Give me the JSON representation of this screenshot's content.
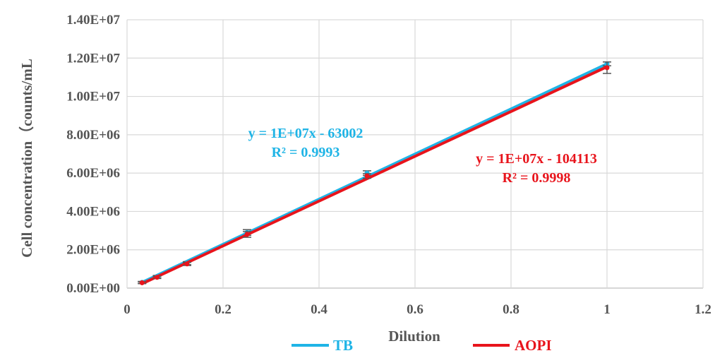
{
  "chart_data": {
    "type": "line",
    "title": "",
    "xlabel": "Dilution",
    "ylabel": "Cell concentration（counts/mL",
    "xlim": [
      0,
      1.2
    ],
    "ylim": [
      0,
      14000000
    ],
    "x_ticks": [
      0,
      0.2,
      0.4,
      0.6,
      0.8,
      1,
      1.2
    ],
    "x_tick_labels": [
      "0",
      "0.2",
      "0.4",
      "0.6",
      "0.8",
      "1",
      "1.2"
    ],
    "y_ticks": [
      0,
      2000000,
      4000000,
      6000000,
      8000000,
      10000000,
      12000000,
      14000000
    ],
    "y_tick_labels": [
      "0.00E+00",
      "2.00E+06",
      "4.00E+06",
      "6.00E+06",
      "8.00E+06",
      "1.00E+07",
      "1.20E+07",
      "1.40E+07"
    ],
    "grid": true,
    "legend_position": "bottom",
    "series": [
      {
        "name": "TB",
        "color": "#1fb4e6",
        "x": [
          0.03125,
          0.0625,
          0.125,
          0.25,
          0.5,
          1
        ],
        "y": [
          300000,
          600000,
          1300000,
          2900000,
          6000000,
          11700000
        ],
        "error": [
          50000,
          60000,
          80000,
          150000,
          120000,
          100000
        ],
        "fit": [
          [
            0.03125,
            300000
          ],
          [
            1,
            11700000
          ]
        ],
        "equation": "y = 1E+07x - 63002",
        "r2": "R² = 0.9993"
      },
      {
        "name": "AOPI",
        "color": "#e8141c",
        "x": [
          0.03125,
          0.0625,
          0.125,
          0.25,
          0.5,
          1
        ],
        "y": [
          280000,
          560000,
          1260000,
          2800000,
          5850000,
          11500000
        ],
        "error": [
          50000,
          60000,
          80000,
          150000,
          120000,
          300000
        ],
        "fit": [
          [
            0.03125,
            230000
          ],
          [
            1,
            11550000
          ]
        ],
        "equation": "y = 1E+07x - 104113",
        "r2": "R² = 0.9998"
      }
    ]
  }
}
